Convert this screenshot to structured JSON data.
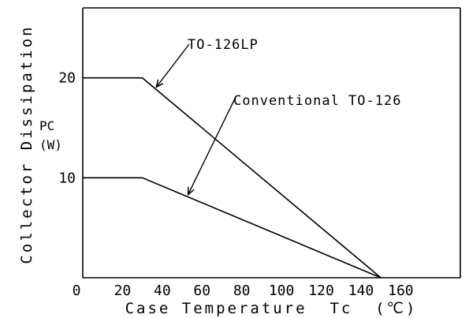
{
  "chart_data": {
    "type": "line",
    "xlabel": "Case Temperature  Tc  (℃)",
    "ylabel": "Collector Dissipation",
    "ylabel_inner": [
      "PC",
      "(W)"
    ],
    "x_ticks": [
      0,
      20,
      40,
      60,
      80,
      100,
      120,
      140,
      160
    ],
    "y_ticks": [
      10,
      20
    ],
    "xlim": [
      0,
      190
    ],
    "ylim": [
      0,
      27
    ],
    "grid": false,
    "series": [
      {
        "name": "TO-126LP",
        "x": [
          0,
          30,
          150
        ],
        "y": [
          20,
          20,
          0
        ]
      },
      {
        "name": "Conventional TO-126",
        "x": [
          0,
          30,
          150
        ],
        "y": [
          10,
          10,
          0
        ]
      }
    ],
    "annotations": [
      {
        "text": "TO-126LP",
        "series": 0,
        "point_x": 37
      },
      {
        "text": "Conventional TO-126",
        "series": 1,
        "point_x": 53
      }
    ]
  }
}
